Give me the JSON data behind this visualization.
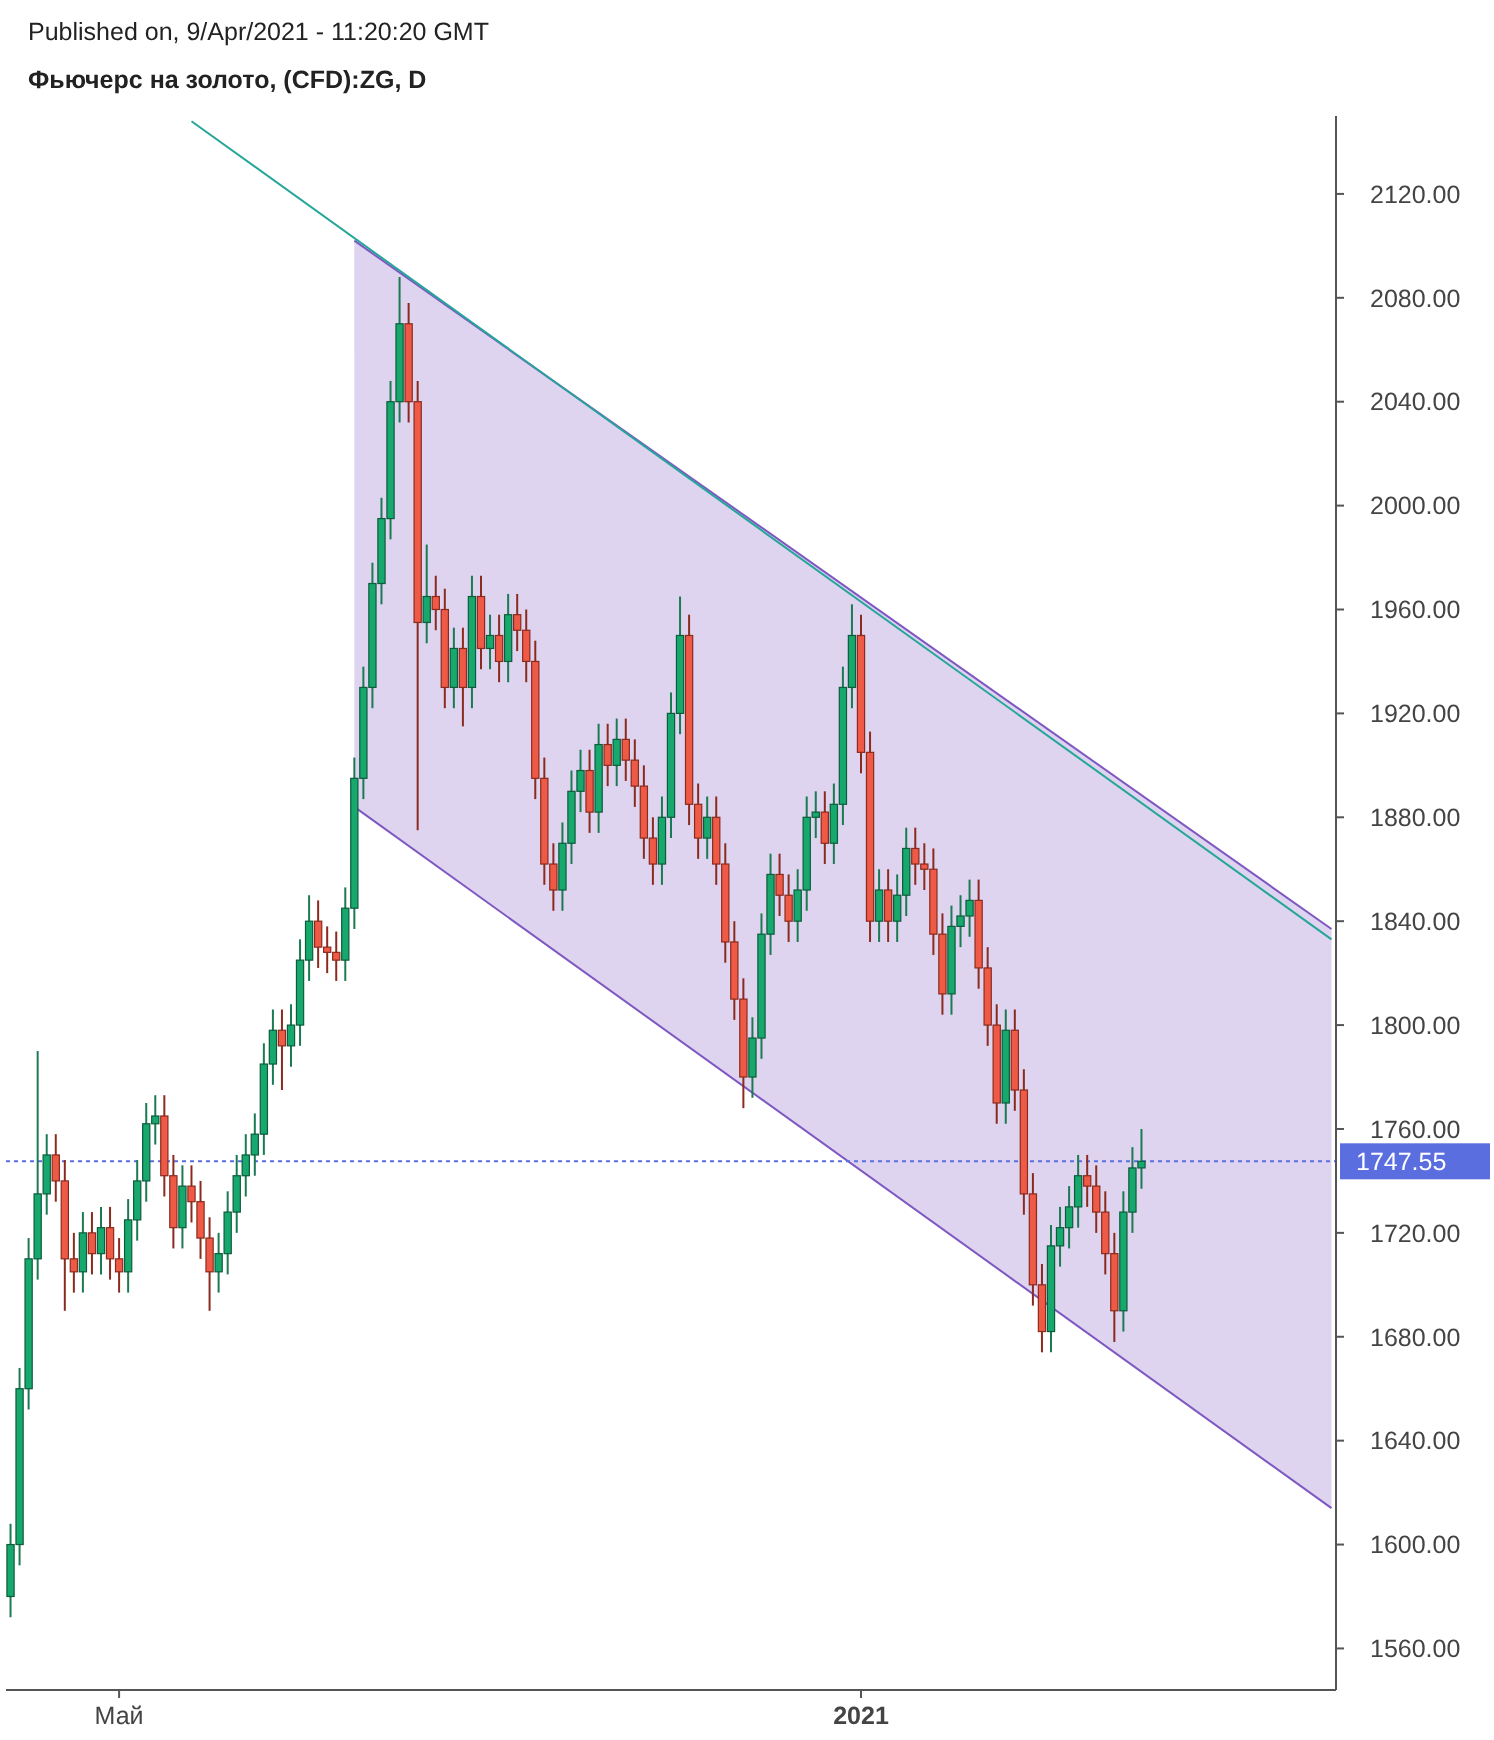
{
  "chart_data": {
    "type": "candlestick",
    "title": "Фьючерс на золото, (CFD):ZG, D",
    "annotations": [
      "Published on, 9/Apr/2021 - 11:20:20 GMT"
    ],
    "categories": [
      null,
      null,
      null,
      null,
      null,
      null,
      null,
      null,
      null,
      null,
      null,
      null,
      "Май",
      null,
      null,
      null,
      null,
      null,
      null,
      null,
      null,
      null,
      null,
      null,
      null,
      null,
      null,
      null,
      null,
      null,
      null,
      null,
      null,
      null,
      null,
      null,
      null,
      null,
      null,
      null,
      null,
      null,
      null,
      null,
      null,
      null,
      null,
      null,
      null,
      null,
      null,
      null,
      null,
      null,
      null,
      null,
      null,
      null,
      null,
      null,
      null,
      null,
      null,
      null,
      null,
      null,
      null,
      null,
      null,
      null,
      null,
      null,
      null,
      null,
      null,
      null,
      null,
      null,
      null,
      null,
      null,
      null,
      null,
      null,
      null,
      null,
      null,
      null,
      null,
      null,
      null,
      null,
      null,
      null,
      "2021",
      null,
      null,
      null,
      null,
      null,
      null,
      null,
      null,
      null,
      null,
      null,
      null,
      null,
      null,
      null,
      null,
      null,
      null,
      null,
      null,
      null,
      null,
      null,
      null,
      null,
      null,
      null,
      null,
      null,
      null,
      null,
      null,
      null,
      null,
      null,
      null,
      null,
      null,
      null,
      null,
      null,
      null,
      null,
      null,
      null,
      null,
      null,
      null,
      null,
      null,
      null,
      null
    ],
    "ohlc": [
      [
        1580,
        1608,
        1572,
        1600
      ],
      [
        1600,
        1668,
        1592,
        1660
      ],
      [
        1660,
        1718,
        1652,
        1710
      ],
      [
        1710,
        1790,
        1702,
        1735
      ],
      [
        1735,
        1758,
        1727,
        1750
      ],
      [
        1750,
        1758,
        1732,
        1740
      ],
      [
        1740,
        1748,
        1690,
        1710
      ],
      [
        1710,
        1720,
        1697,
        1705
      ],
      [
        1705,
        1728,
        1697,
        1720
      ],
      [
        1720,
        1728,
        1704,
        1712
      ],
      [
        1712,
        1730,
        1704,
        1722
      ],
      [
        1722,
        1730,
        1702,
        1710
      ],
      [
        1710,
        1718,
        1697,
        1705
      ],
      [
        1705,
        1733,
        1697,
        1725
      ],
      [
        1725,
        1748,
        1717,
        1740
      ],
      [
        1740,
        1770,
        1732,
        1762
      ],
      [
        1762,
        1773,
        1754,
        1765
      ],
      [
        1765,
        1773,
        1734,
        1742
      ],
      [
        1742,
        1750,
        1714,
        1722
      ],
      [
        1722,
        1746,
        1714,
        1738
      ],
      [
        1738,
        1746,
        1724,
        1732
      ],
      [
        1732,
        1740,
        1710,
        1718
      ],
      [
        1718,
        1726,
        1690,
        1705
      ],
      [
        1705,
        1720,
        1697,
        1712
      ],
      [
        1712,
        1736,
        1704,
        1728
      ],
      [
        1728,
        1750,
        1720,
        1742
      ],
      [
        1742,
        1758,
        1734,
        1750
      ],
      [
        1750,
        1766,
        1742,
        1758
      ],
      [
        1758,
        1793,
        1750,
        1785
      ],
      [
        1785,
        1806,
        1777,
        1798
      ],
      [
        1798,
        1806,
        1775,
        1792
      ],
      [
        1792,
        1808,
        1784,
        1800
      ],
      [
        1800,
        1833,
        1792,
        1825
      ],
      [
        1825,
        1850,
        1817,
        1840
      ],
      [
        1840,
        1848,
        1822,
        1830
      ],
      [
        1830,
        1838,
        1820,
        1828
      ],
      [
        1828,
        1836,
        1817,
        1825
      ],
      [
        1825,
        1853,
        1817,
        1845
      ],
      [
        1845,
        1903,
        1837,
        1895
      ],
      [
        1895,
        1938,
        1887,
        1930
      ],
      [
        1930,
        1978,
        1922,
        1970
      ],
      [
        1970,
        2003,
        1962,
        1995
      ],
      [
        1995,
        2048,
        1987,
        2040
      ],
      [
        2040,
        2088,
        2032,
        2070
      ],
      [
        2070,
        2078,
        2032,
        2040
      ],
      [
        2040,
        2048,
        1875,
        1955
      ],
      [
        1955,
        1985,
        1947,
        1965
      ],
      [
        1965,
        1973,
        1952,
        1960
      ],
      [
        1960,
        1968,
        1922,
        1930
      ],
      [
        1930,
        1953,
        1922,
        1945
      ],
      [
        1945,
        1953,
        1915,
        1930
      ],
      [
        1930,
        1973,
        1922,
        1965
      ],
      [
        1965,
        1973,
        1937,
        1945
      ],
      [
        1945,
        1958,
        1937,
        1950
      ],
      [
        1950,
        1958,
        1932,
        1940
      ],
      [
        1940,
        1966,
        1932,
        1958
      ],
      [
        1958,
        1966,
        1944,
        1952
      ],
      [
        1952,
        1960,
        1932,
        1940
      ],
      [
        1940,
        1948,
        1887,
        1895
      ],
      [
        1895,
        1903,
        1854,
        1862
      ],
      [
        1862,
        1870,
        1844,
        1852
      ],
      [
        1852,
        1878,
        1844,
        1870
      ],
      [
        1870,
        1898,
        1862,
        1890
      ],
      [
        1890,
        1906,
        1882,
        1898
      ],
      [
        1898,
        1906,
        1874,
        1882
      ],
      [
        1882,
        1916,
        1874,
        1908
      ],
      [
        1908,
        1916,
        1892,
        1900
      ],
      [
        1900,
        1918,
        1892,
        1910
      ],
      [
        1910,
        1918,
        1894,
        1902
      ],
      [
        1902,
        1910,
        1884,
        1892
      ],
      [
        1892,
        1900,
        1864,
        1872
      ],
      [
        1872,
        1880,
        1854,
        1862
      ],
      [
        1862,
        1888,
        1854,
        1880
      ],
      [
        1880,
        1928,
        1872,
        1920
      ],
      [
        1920,
        1965,
        1912,
        1950
      ],
      [
        1950,
        1958,
        1877,
        1885
      ],
      [
        1885,
        1893,
        1864,
        1872
      ],
      [
        1872,
        1888,
        1864,
        1880
      ],
      [
        1880,
        1888,
        1854,
        1862
      ],
      [
        1862,
        1870,
        1824,
        1832
      ],
      [
        1832,
        1840,
        1802,
        1810
      ],
      [
        1810,
        1818,
        1768,
        1780
      ],
      [
        1780,
        1803,
        1772,
        1795
      ],
      [
        1795,
        1843,
        1787,
        1835
      ],
      [
        1835,
        1866,
        1827,
        1858
      ],
      [
        1858,
        1866,
        1842,
        1850
      ],
      [
        1850,
        1858,
        1832,
        1840
      ],
      [
        1840,
        1860,
        1832,
        1852
      ],
      [
        1852,
        1888,
        1844,
        1880
      ],
      [
        1880,
        1890,
        1872,
        1882
      ],
      [
        1882,
        1890,
        1862,
        1870
      ],
      [
        1870,
        1893,
        1862,
        1885
      ],
      [
        1885,
        1938,
        1877,
        1930
      ],
      [
        1930,
        1962,
        1922,
        1950
      ],
      [
        1950,
        1958,
        1897,
        1905
      ],
      [
        1905,
        1913,
        1832,
        1840
      ],
      [
        1840,
        1860,
        1832,
        1852
      ],
      [
        1852,
        1860,
        1832,
        1840
      ],
      [
        1840,
        1858,
        1832,
        1850
      ],
      [
        1850,
        1876,
        1842,
        1868
      ],
      [
        1868,
        1876,
        1854,
        1862
      ],
      [
        1862,
        1870,
        1852,
        1860
      ],
      [
        1860,
        1868,
        1827,
        1835
      ],
      [
        1835,
        1843,
        1804,
        1812
      ],
      [
        1812,
        1846,
        1804,
        1838
      ],
      [
        1838,
        1850,
        1830,
        1842
      ],
      [
        1842,
        1856,
        1834,
        1848
      ],
      [
        1848,
        1856,
        1814,
        1822
      ],
      [
        1822,
        1830,
        1792,
        1800
      ],
      [
        1800,
        1808,
        1762,
        1770
      ],
      [
        1770,
        1806,
        1762,
        1798
      ],
      [
        1798,
        1806,
        1767,
        1775
      ],
      [
        1775,
        1783,
        1727,
        1735
      ],
      [
        1735,
        1743,
        1692,
        1700
      ],
      [
        1700,
        1708,
        1674,
        1682
      ],
      [
        1682,
        1723,
        1674,
        1715
      ],
      [
        1715,
        1730,
        1707,
        1722
      ],
      [
        1722,
        1738,
        1714,
        1730
      ],
      [
        1730,
        1750,
        1722,
        1742
      ],
      [
        1742,
        1750,
        1730,
        1738
      ],
      [
        1738,
        1746,
        1720,
        1728
      ],
      [
        1728,
        1736,
        1704,
        1712
      ],
      [
        1712,
        1720,
        1678,
        1690
      ],
      [
        1690,
        1736,
        1682,
        1728
      ],
      [
        1728,
        1753,
        1720,
        1745
      ],
      [
        1745,
        1760,
        1737,
        1747.55
      ],
      null,
      null,
      null,
      null,
      null,
      null,
      null,
      null,
      null,
      null,
      null,
      null,
      null,
      null,
      null,
      null,
      null,
      null,
      null,
      null,
      null
    ],
    "series": [
      {
        "type": "line",
        "values": [
          null,
          null,
          null,
          null,
          null,
          null,
          null,
          null,
          null,
          null,
          null,
          null,
          null,
          null,
          null,
          null,
          null,
          null,
          null,
          null,
          null,
          null,
          null,
          null,
          null,
          null,
          null,
          null,
          null,
          null,
          null,
          null,
          null,
          null,
          null,
          null,
          null,
          null,
          2102,
          null,
          null,
          null,
          null,
          null,
          null,
          null,
          null,
          null,
          null,
          null,
          null,
          null,
          null,
          null,
          null,
          null,
          null,
          null,
          null,
          null,
          null,
          null,
          null,
          null,
          null,
          null,
          null,
          null,
          null,
          null,
          null,
          null,
          null,
          null,
          null,
          null,
          null,
          null,
          null,
          null,
          null,
          null,
          null,
          null,
          null,
          null,
          null,
          null,
          null,
          null,
          null,
          null,
          null,
          null,
          null,
          null,
          null,
          null,
          null,
          null,
          null,
          null,
          null,
          null,
          null,
          null,
          null,
          null,
          null,
          null,
          null,
          null,
          null,
          null,
          null,
          null,
          null,
          null,
          null,
          null,
          null,
          null,
          null,
          null,
          null,
          null,
          null,
          null,
          null,
          null,
          null,
          null,
          null,
          null,
          null,
          null,
          null,
          null,
          null,
          null,
          null,
          null,
          null,
          null,
          null,
          null,
          1837
        ],
        "color": "#7e57c2"
      },
      {
        "type": "line",
        "values": [
          null,
          null,
          null,
          null,
          null,
          null,
          null,
          null,
          null,
          null,
          null,
          null,
          null,
          null,
          null,
          null,
          null,
          null,
          null,
          null,
          null,
          null,
          null,
          null,
          null,
          null,
          null,
          null,
          null,
          null,
          null,
          null,
          null,
          null,
          null,
          null,
          null,
          null,
          1884,
          null,
          null,
          null,
          null,
          null,
          null,
          null,
          null,
          null,
          null,
          null,
          null,
          null,
          null,
          null,
          null,
          null,
          null,
          null,
          null,
          null,
          null,
          null,
          null,
          null,
          null,
          null,
          null,
          null,
          null,
          null,
          null,
          null,
          null,
          null,
          null,
          null,
          null,
          null,
          null,
          null,
          null,
          null,
          null,
          null,
          null,
          null,
          null,
          null,
          null,
          null,
          null,
          null,
          null,
          null,
          null,
          null,
          null,
          null,
          null,
          null,
          null,
          null,
          null,
          null,
          null,
          null,
          null,
          null,
          null,
          null,
          null,
          null,
          null,
          null,
          null,
          null,
          null,
          null,
          null,
          null,
          null,
          null,
          null,
          null,
          null,
          null,
          null,
          null,
          null,
          null,
          null,
          null,
          null,
          null,
          null,
          null,
          null,
          null,
          null,
          null,
          null,
          null,
          null,
          null,
          null,
          null,
          1614
        ],
        "color": "#7e57c2"
      },
      {
        "type": "line",
        "values": [
          null,
          null,
          null,
          null,
          null,
          null,
          null,
          null,
          null,
          null,
          null,
          null,
          null,
          null,
          null,
          null,
          null,
          null,
          null,
          null,
          2148,
          null,
          null,
          null,
          null,
          null,
          null,
          null,
          null,
          null,
          null,
          null,
          null,
          null,
          null,
          null,
          null,
          null,
          null,
          null,
          null,
          null,
          null,
          null,
          null,
          null,
          null,
          null,
          null,
          null,
          null,
          null,
          null,
          null,
          null,
          null,
          null,
          null,
          null,
          null,
          null,
          null,
          null,
          null,
          null,
          null,
          null,
          null,
          null,
          null,
          null,
          null,
          null,
          null,
          null,
          null,
          null,
          null,
          null,
          null,
          null,
          null,
          null,
          null,
          null,
          null,
          null,
          null,
          null,
          null,
          null,
          null,
          null,
          null,
          null,
          null,
          null,
          null,
          null,
          null,
          null,
          null,
          null,
          null,
          null,
          null,
          null,
          null,
          null,
          null,
          null,
          null,
          null,
          null,
          null,
          null,
          null,
          null,
          null,
          null,
          null,
          null,
          null,
          null,
          null,
          null,
          null,
          null,
          null,
          null,
          null,
          null,
          null,
          null,
          null,
          null,
          null,
          null,
          null,
          null,
          null,
          null,
          null,
          null,
          null,
          null,
          1833
        ],
        "color": "#26a69a"
      }
    ],
    "ylim": [
      1544,
      2150
    ],
    "yticks": [
      {
        "value": 1560,
        "label": "1560.00"
      },
      {
        "value": 1600,
        "label": "1600.00"
      },
      {
        "value": 1640,
        "label": "1640.00"
      },
      {
        "value": 1680,
        "label": "1680.00"
      },
      {
        "value": 1720,
        "label": "1720.00"
      },
      {
        "value": 1760,
        "label": "1760.00"
      },
      {
        "value": 1800,
        "label": "1800.00"
      },
      {
        "value": 1840,
        "label": "1840.00"
      },
      {
        "value": 1880,
        "label": "1880.00"
      },
      {
        "value": 1920,
        "label": "1920.00"
      },
      {
        "value": 1960,
        "label": "1960.00"
      },
      {
        "value": 2000,
        "label": "2000.00"
      },
      {
        "value": 2040,
        "label": "2040.00"
      },
      {
        "value": 2080,
        "label": "2080.00"
      },
      {
        "value": 2120,
        "label": "2120.00"
      }
    ],
    "ref_lines": [
      {
        "axis": "y",
        "value": 1747.55,
        "label": "1747.55",
        "color": "#5a6ee0",
        "line_style": "dotted"
      }
    ]
  }
}
